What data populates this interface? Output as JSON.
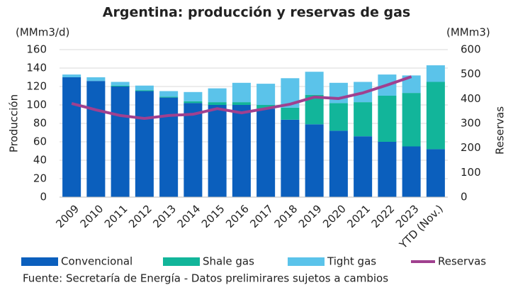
{
  "chart_data": {
    "type": "bar",
    "title": "Argentina: producción y reservas de gas",
    "y_unit": "(MMm3/d)",
    "y2_unit": "(MMm3)",
    "y_label": "Producción",
    "y2_label": "Reservas",
    "source": "Fuente: Secretaría de Energía - Datos prelimirares sujetos a cambios",
    "stacked": true,
    "grid": true,
    "legend": "bottom",
    "categories": [
      "2009",
      "2010",
      "2011",
      "2012",
      "2013",
      "2014",
      "2015",
      "2016",
      "2017",
      "2018",
      "2019",
      "2020",
      "2021",
      "2022",
      "2023",
      "YTD (Nov.)"
    ],
    "series": [
      {
        "name": "Convencional",
        "color": "#0b5fbd",
        "values": [
          130,
          126,
          120,
          115,
          108,
          102,
          100,
          100,
          96,
          84,
          79,
          72,
          66,
          60,
          55,
          52
        ]
      },
      {
        "name": "Shale gas",
        "color": "#12b59a",
        "values": [
          0,
          0,
          1,
          1,
          1,
          2,
          3,
          3,
          4,
          13,
          32,
          30,
          37,
          50,
          58,
          73
        ]
      },
      {
        "name": "Tight gas",
        "color": "#5bc3ea",
        "values": [
          3,
          4,
          4,
          5,
          6,
          10,
          15,
          21,
          23,
          32,
          25,
          22,
          22,
          23,
          19,
          18
        ]
      },
      {
        "name": "Reservas",
        "color": "#a0408f",
        "type": "line",
        "axis": "y2",
        "values": [
          381,
          355,
          332,
          320,
          332,
          337,
          360,
          343,
          360,
          378,
          407,
          401,
          424,
          456,
          490,
          null
        ]
      }
    ],
    "ylim": [
      0,
      160
    ],
    "yticks": [
      0,
      20,
      40,
      60,
      80,
      100,
      120,
      140,
      160
    ],
    "y2lim": [
      0,
      600
    ],
    "y2ticks": [
      0,
      100,
      200,
      300,
      400,
      500,
      600
    ]
  }
}
